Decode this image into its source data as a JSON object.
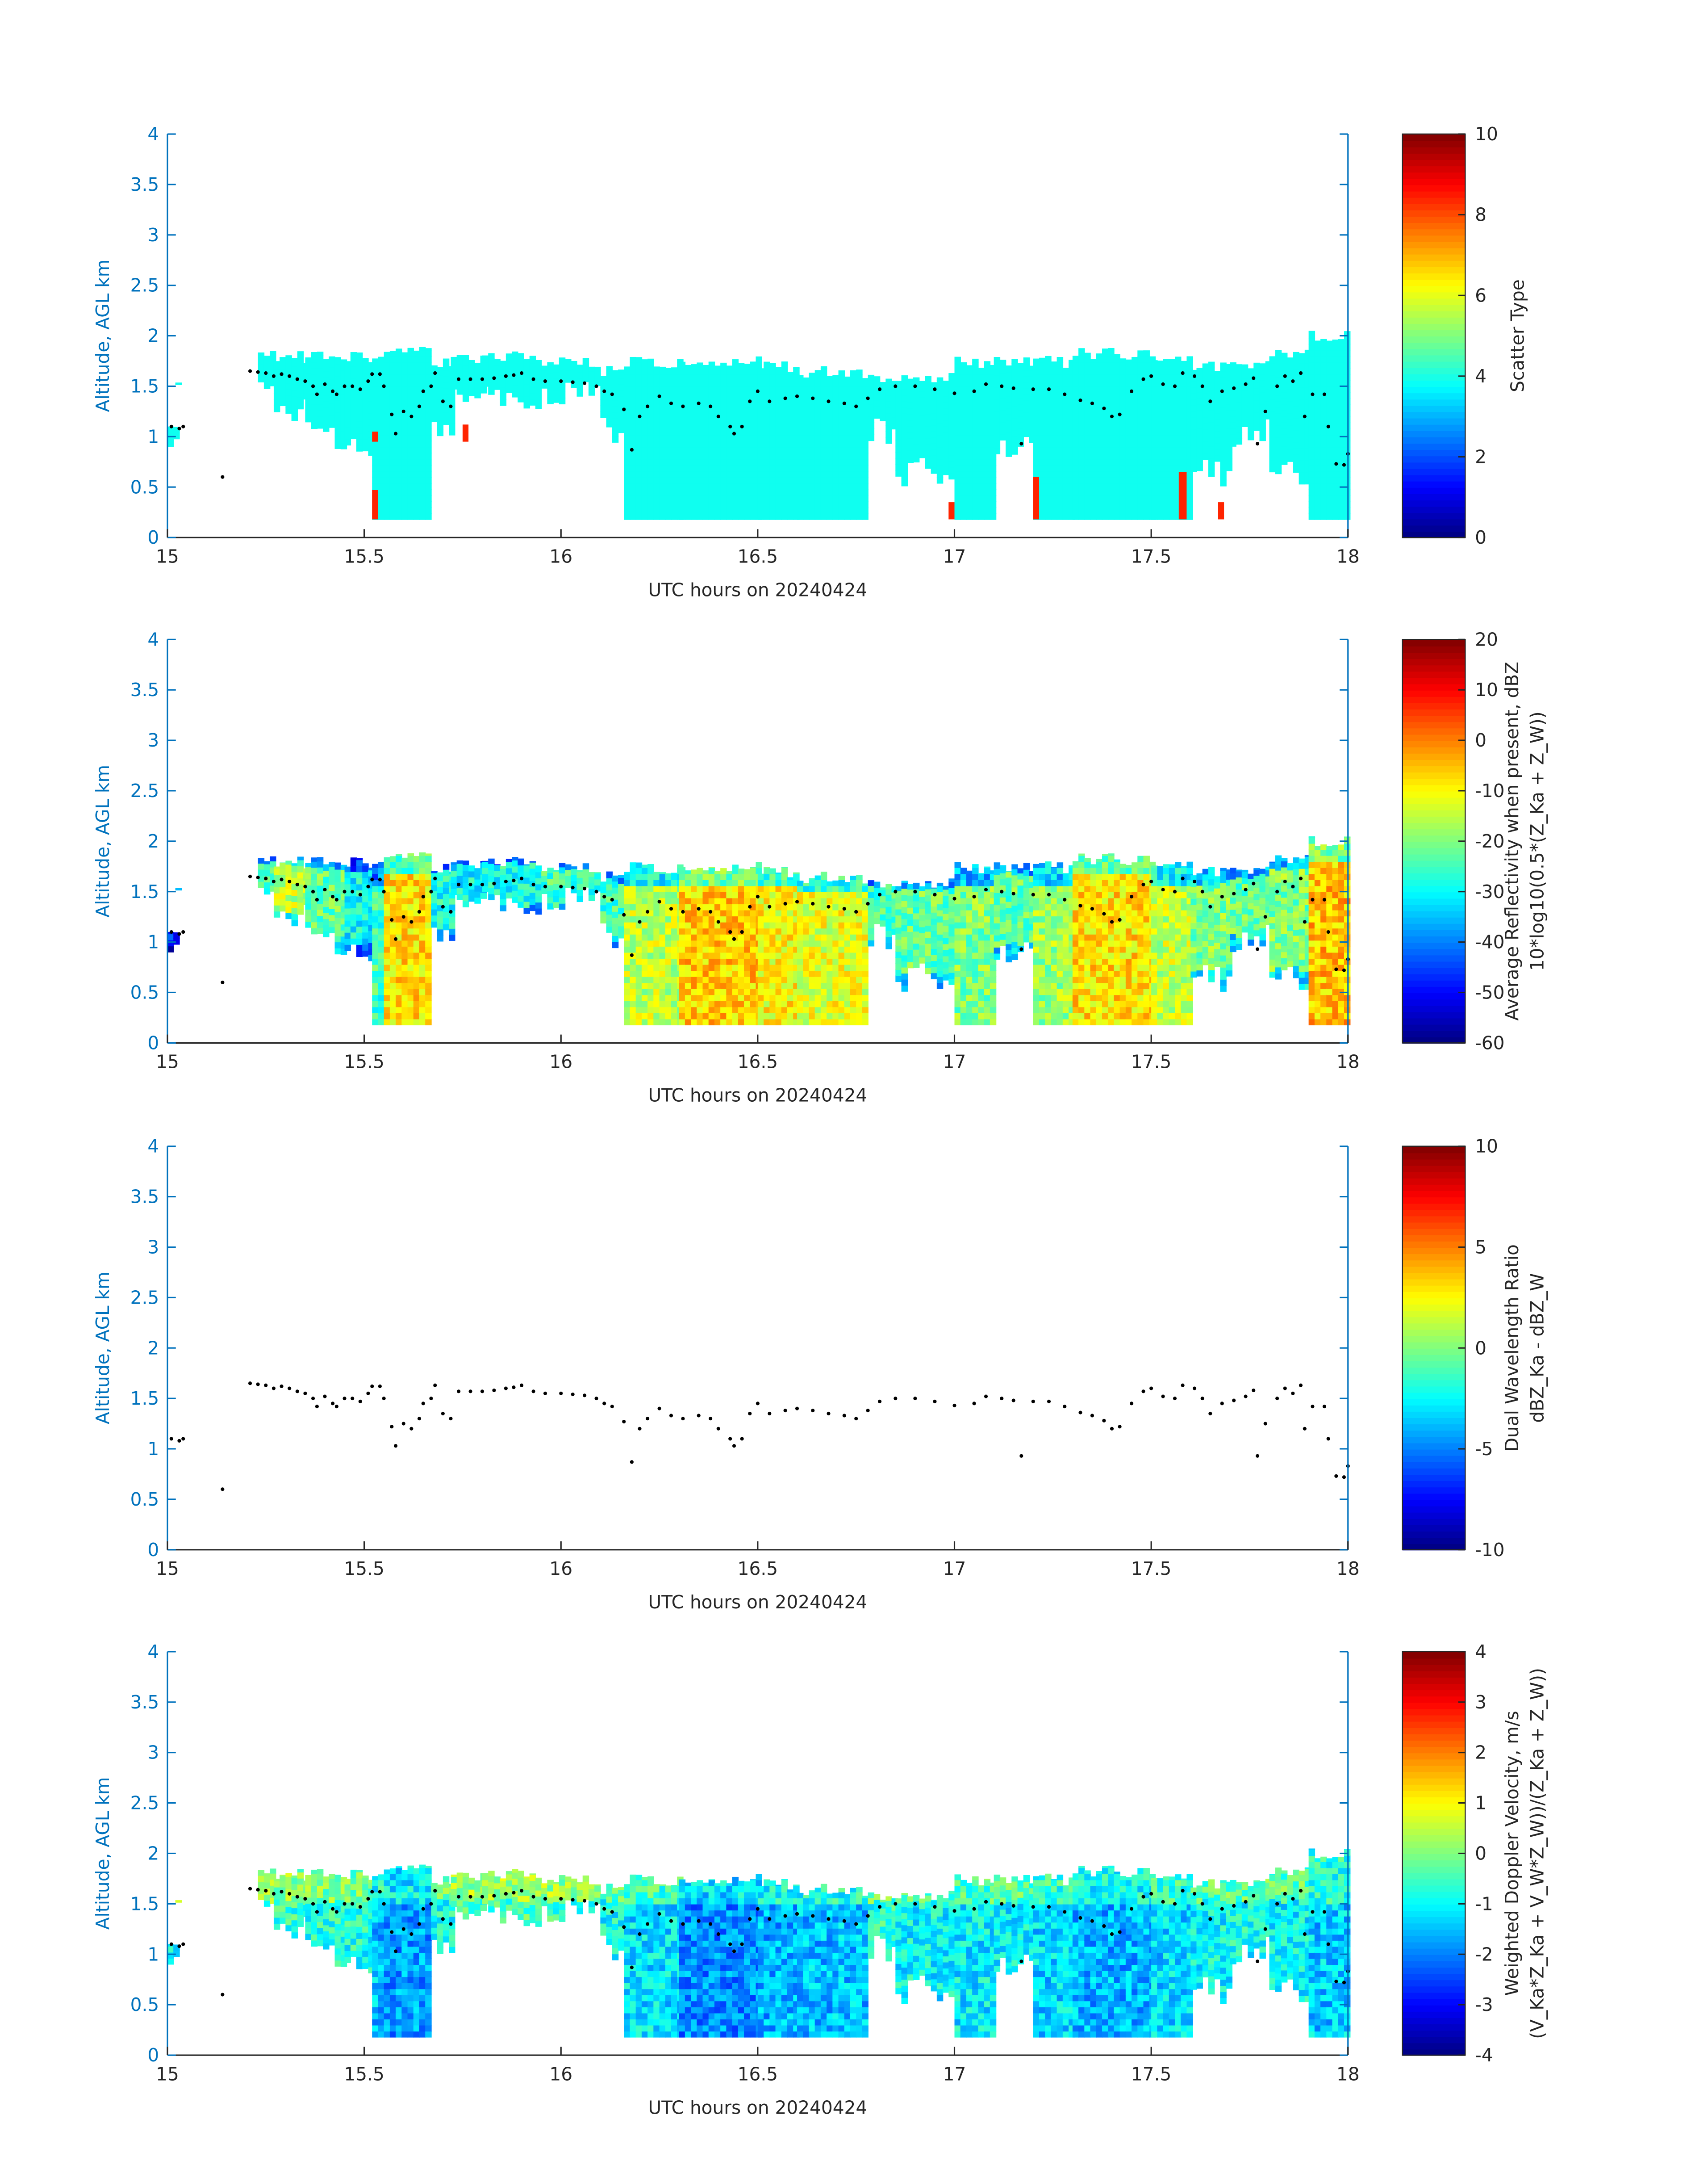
{
  "chart_data": [
    {
      "type": "heatmap",
      "panel": "scatter-type",
      "xlabel": "UTC hours on 20240424",
      "ylabel": "Altitude, AGL km",
      "xlim": [
        15,
        18
      ],
      "ylim": [
        0,
        4
      ],
      "xticks": [
        "15",
        "15.5",
        "16",
        "16.5",
        "17",
        "17.5",
        "18"
      ],
      "yticks": [
        "0",
        "0.5",
        "1",
        "1.5",
        "2",
        "2.5",
        "3",
        "3.5",
        "4"
      ],
      "colorbar": {
        "label_lines": [
          "Scatter Type"
        ],
        "clim": [
          0,
          10
        ],
        "ticks": [
          "0",
          "2",
          "4",
          "6",
          "8",
          "10"
        ],
        "colormap": "jet"
      },
      "field": "scatter_type",
      "background_value": 3.9,
      "highlight_value": 8.4,
      "highlight_cells": [
        [
          15.52,
          15.535,
          0.18,
          0.47
        ],
        [
          15.52,
          15.535,
          0.95,
          1.05
        ],
        [
          15.75,
          15.765,
          0.95,
          1.12
        ],
        [
          16.985,
          17.0,
          0.18,
          0.35
        ],
        [
          17.2,
          17.215,
          0.18,
          0.6
        ],
        [
          17.57,
          17.59,
          0.18,
          0.65
        ],
        [
          17.67,
          17.685,
          0.18,
          0.35
        ]
      ]
    },
    {
      "type": "heatmap",
      "panel": "reflectivity",
      "xlabel": "UTC hours on 20240424",
      "ylabel": "Altitude, AGL km",
      "xlim": [
        15,
        18
      ],
      "ylim": [
        0,
        4
      ],
      "xticks": [
        "15",
        "15.5",
        "16",
        "16.5",
        "17",
        "17.5",
        "18"
      ],
      "yticks": [
        "0",
        "0.5",
        "1",
        "1.5",
        "2",
        "2.5",
        "3",
        "3.5",
        "4"
      ],
      "colorbar": {
        "label_lines": [
          "Average Reflectivity when present, dBZ",
          "10*log10(0.5*(Z_Ka + Z_W))"
        ],
        "clim": [
          -60,
          20
        ],
        "ticks": [
          "-60",
          "-50",
          "-40",
          "-30",
          "-20",
          "-10",
          "0",
          "10",
          "20"
        ],
        "colormap": "jet"
      },
      "field": "dbz"
    },
    {
      "type": "heatmap",
      "panel": "dual-wavelength-ratio",
      "xlabel": "UTC hours on 20240424",
      "ylabel": "Altitude, AGL km",
      "xlim": [
        15,
        18
      ],
      "ylim": [
        0,
        4
      ],
      "xticks": [
        "15",
        "15.5",
        "16",
        "16.5",
        "17",
        "17.5",
        "18"
      ],
      "yticks": [
        "0",
        "0.5",
        "1",
        "1.5",
        "2",
        "2.5",
        "3",
        "3.5",
        "4"
      ],
      "colorbar": {
        "label_lines": [
          "Dual Wavelength Ratio",
          "dBZ_Ka - dBZ_W"
        ],
        "clim": [
          -10,
          10
        ],
        "ticks": [
          "-10",
          "-5",
          "0",
          "5",
          "10"
        ],
        "colormap": "jet"
      },
      "field": null
    },
    {
      "type": "heatmap",
      "panel": "doppler-velocity",
      "xlabel": "UTC hours on 20240424",
      "ylabel": "Altitude, AGL km",
      "xlim": [
        15,
        18
      ],
      "ylim": [
        0,
        4
      ],
      "xticks": [
        "15",
        "15.5",
        "16",
        "16.5",
        "17",
        "17.5",
        "18"
      ],
      "yticks": [
        "0",
        "0.5",
        "1",
        "1.5",
        "2",
        "2.5",
        "3",
        "3.5",
        "4"
      ],
      "colorbar": {
        "label_lines": [
          "Weighted Doppler Velocity, m/s",
          "(V_Ka*Z_Ka + V_W*Z_W))/(Z_Ka + Z_W))"
        ],
        "clim": [
          -4,
          4
        ],
        "ticks": [
          "-4",
          "-3",
          "-2",
          "-1",
          "0",
          "1",
          "2",
          "3",
          "4"
        ],
        "colormap": "jet"
      },
      "field": "vel"
    }
  ],
  "cloud_segments": {
    "columns": [
      "t_start",
      "t_end",
      "top_km",
      "base_km",
      "dbz",
      "vel"
    ],
    "rows": [
      [
        15.0,
        15.02,
        1.2,
        0.9,
        -45,
        -0.8
      ],
      [
        15.02,
        15.04,
        1.65,
        1.45,
        -40,
        -0.5
      ],
      [
        15.13,
        15.15,
        0.7,
        0.55,
        -45,
        -0.8
      ],
      [
        15.2,
        15.23,
        1.78,
        1.6,
        -35,
        -0.6
      ],
      [
        15.23,
        15.27,
        1.85,
        1.35,
        -25,
        -0.5
      ],
      [
        15.27,
        15.35,
        1.85,
        1.15,
        -15,
        -0.6
      ],
      [
        15.35,
        15.45,
        1.85,
        0.85,
        -22,
        -0.7
      ],
      [
        15.45,
        15.52,
        1.85,
        0.8,
        -30,
        -0.8
      ],
      [
        15.52,
        15.55,
        1.8,
        0.18,
        -25,
        -1.5
      ],
      [
        15.55,
        15.67,
        1.9,
        0.18,
        -8,
        -1.8
      ],
      [
        15.67,
        15.72,
        1.8,
        1.0,
        -28,
        -0.8
      ],
      [
        15.72,
        15.8,
        1.85,
        1.25,
        -30,
        -0.5
      ],
      [
        15.8,
        15.95,
        1.85,
        1.25,
        -28,
        -0.4
      ],
      [
        15.95,
        16.1,
        1.8,
        1.25,
        -25,
        -0.5
      ],
      [
        16.1,
        16.16,
        1.7,
        0.9,
        -25,
        -0.9
      ],
      [
        16.16,
        16.3,
        1.8,
        0.18,
        -15,
        -1.2
      ],
      [
        16.3,
        16.5,
        1.8,
        0.18,
        -6,
        -1.9
      ],
      [
        16.5,
        16.6,
        1.75,
        0.18,
        -10,
        -1.6
      ],
      [
        16.6,
        16.78,
        1.7,
        0.18,
        -12,
        -1.5
      ],
      [
        16.78,
        16.85,
        1.65,
        0.9,
        -25,
        -0.7
      ],
      [
        16.85,
        17.0,
        1.65,
        0.5,
        -22,
        -1.0
      ],
      [
        17.0,
        17.1,
        1.8,
        0.18,
        -20,
        -1.1
      ],
      [
        17.1,
        17.2,
        1.8,
        0.8,
        -22,
        -1.0
      ],
      [
        17.2,
        17.3,
        1.8,
        0.18,
        -18,
        -1.3
      ],
      [
        17.3,
        17.5,
        1.88,
        0.18,
        -8,
        -1.6
      ],
      [
        17.5,
        17.6,
        1.8,
        0.18,
        -15,
        -1.3
      ],
      [
        17.6,
        17.7,
        1.75,
        0.5,
        -20,
        -1.0
      ],
      [
        17.7,
        17.8,
        1.75,
        0.9,
        -22,
        -0.9
      ],
      [
        17.8,
        17.9,
        1.9,
        0.5,
        -20,
        -1.0
      ],
      [
        17.9,
        18.0,
        2.05,
        0.18,
        -5,
        -1.4
      ]
    ]
  },
  "cloud_top_points": [
    [
      15.01,
      1.1
    ],
    [
      15.03,
      1.08
    ],
    [
      15.04,
      1.1
    ],
    [
      15.14,
      0.6
    ],
    [
      15.21,
      1.65
    ],
    [
      15.23,
      1.64
    ],
    [
      15.25,
      1.63
    ],
    [
      15.27,
      1.6
    ],
    [
      15.29,
      1.62
    ],
    [
      15.31,
      1.6
    ],
    [
      15.33,
      1.57
    ],
    [
      15.35,
      1.55
    ],
    [
      15.37,
      1.5
    ],
    [
      15.38,
      1.42
    ],
    [
      15.4,
      1.52
    ],
    [
      15.42,
      1.45
    ],
    [
      15.43,
      1.42
    ],
    [
      15.45,
      1.5
    ],
    [
      15.47,
      1.5
    ],
    [
      15.49,
      1.47
    ],
    [
      15.51,
      1.55
    ],
    [
      15.52,
      1.62
    ],
    [
      15.54,
      1.62
    ],
    [
      15.55,
      1.5
    ],
    [
      15.57,
      1.22
    ],
    [
      15.58,
      1.03
    ],
    [
      15.6,
      1.25
    ],
    [
      15.62,
      1.2
    ],
    [
      15.64,
      1.3
    ],
    [
      15.65,
      1.45
    ],
    [
      15.67,
      1.5
    ],
    [
      15.68,
      1.63
    ],
    [
      15.7,
      1.35
    ],
    [
      15.72,
      1.3
    ],
    [
      15.74,
      1.57
    ],
    [
      15.77,
      1.57
    ],
    [
      15.8,
      1.57
    ],
    [
      15.83,
      1.58
    ],
    [
      15.86,
      1.6
    ],
    [
      15.88,
      1.61
    ],
    [
      15.9,
      1.63
    ],
    [
      15.93,
      1.57
    ],
    [
      15.96,
      1.55
    ],
    [
      16.0,
      1.55
    ],
    [
      16.03,
      1.54
    ],
    [
      16.06,
      1.53
    ],
    [
      16.09,
      1.5
    ],
    [
      16.11,
      1.45
    ],
    [
      16.13,
      1.42
    ],
    [
      16.16,
      1.27
    ],
    [
      16.18,
      0.87
    ],
    [
      16.2,
      1.2
    ],
    [
      16.22,
      1.3
    ],
    [
      16.25,
      1.4
    ],
    [
      16.28,
      1.33
    ],
    [
      16.31,
      1.3
    ],
    [
      16.35,
      1.33
    ],
    [
      16.38,
      1.3
    ],
    [
      16.4,
      1.2
    ],
    [
      16.43,
      1.1
    ],
    [
      16.44,
      1.03
    ],
    [
      16.46,
      1.1
    ],
    [
      16.48,
      1.35
    ],
    [
      16.5,
      1.45
    ],
    [
      16.53,
      1.35
    ],
    [
      16.57,
      1.38
    ],
    [
      16.6,
      1.4
    ],
    [
      16.64,
      1.38
    ],
    [
      16.68,
      1.35
    ],
    [
      16.72,
      1.33
    ],
    [
      16.75,
      1.3
    ],
    [
      16.78,
      1.38
    ],
    [
      16.81,
      1.47
    ],
    [
      16.85,
      1.5
    ],
    [
      16.9,
      1.5
    ],
    [
      16.95,
      1.47
    ],
    [
      17.0,
      1.43
    ],
    [
      17.05,
      1.45
    ],
    [
      17.08,
      1.52
    ],
    [
      17.12,
      1.5
    ],
    [
      17.15,
      1.48
    ],
    [
      17.17,
      0.93
    ],
    [
      17.2,
      1.47
    ],
    [
      17.24,
      1.47
    ],
    [
      17.28,
      1.42
    ],
    [
      17.32,
      1.36
    ],
    [
      17.35,
      1.33
    ],
    [
      17.38,
      1.28
    ],
    [
      17.4,
      1.2
    ],
    [
      17.42,
      1.22
    ],
    [
      17.45,
      1.45
    ],
    [
      17.48,
      1.57
    ],
    [
      17.5,
      1.6
    ],
    [
      17.53,
      1.52
    ],
    [
      17.56,
      1.5
    ],
    [
      17.58,
      1.63
    ],
    [
      17.61,
      1.6
    ],
    [
      17.63,
      1.5
    ],
    [
      17.65,
      1.35
    ],
    [
      17.68,
      1.45
    ],
    [
      17.71,
      1.48
    ],
    [
      17.74,
      1.52
    ],
    [
      17.76,
      1.58
    ],
    [
      17.77,
      0.93
    ],
    [
      17.79,
      1.25
    ],
    [
      17.82,
      1.5
    ],
    [
      17.84,
      1.6
    ],
    [
      17.86,
      1.55
    ],
    [
      17.88,
      1.63
    ],
    [
      17.89,
      1.2
    ],
    [
      17.91,
      1.42
    ],
    [
      17.94,
      1.42
    ],
    [
      17.95,
      1.1
    ],
    [
      17.97,
      0.73
    ],
    [
      17.99,
      0.72
    ],
    [
      18.0,
      0.83
    ]
  ],
  "colors": {
    "axis": "#0072BD",
    "text": "#262626",
    "points": "#000000"
  }
}
